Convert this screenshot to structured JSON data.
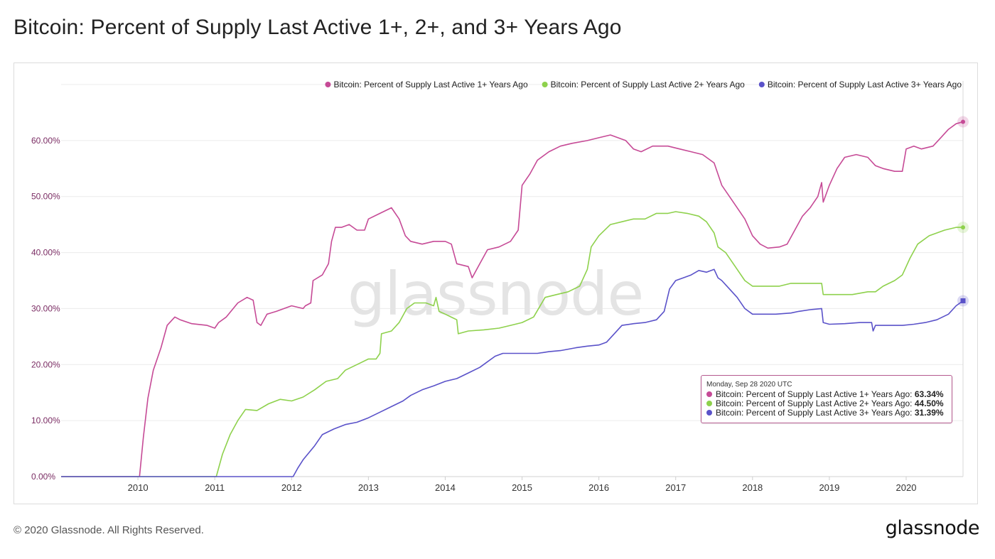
{
  "title": "Bitcoin: Percent of Supply Last Active 1+, 2+, and 3+ Years Ago",
  "footer": {
    "copyright": "© 2020 Glassnode. All Rights Reserved.",
    "logo": "glassnode"
  },
  "watermark": "glassnode",
  "tooltip": {
    "date": "Monday, Sep 28 2020 UTC",
    "rows": [
      {
        "label": "Bitcoin: Percent of Supply Last Active 1+ Years Ago:",
        "value": "63.34%",
        "color": "#c64a96"
      },
      {
        "label": "Bitcoin: Percent of Supply Last Active 2+ Years Ago:",
        "value": "44.50%",
        "color": "#8ed14c"
      },
      {
        "label": "Bitcoin: Percent of Supply Last Active 3+ Years Ago:",
        "value": "31.39%",
        "color": "#5a52c9"
      }
    ]
  },
  "chart_data": {
    "type": "line",
    "title": "Bitcoin: Percent of Supply Last Active 1+, 2+, and 3+ Years Ago",
    "xlim": [
      2009.0,
      2020.74
    ],
    "ylim": [
      0,
      70
    ],
    "x_ticks": [
      2010,
      2011,
      2012,
      2013,
      2014,
      2015,
      2016,
      2017,
      2018,
      2019,
      2020
    ],
    "x_tick_labels": [
      "2010",
      "2011",
      "2012",
      "2013",
      "2014",
      "2015",
      "2016",
      "2017",
      "2018",
      "2019",
      "2020"
    ],
    "y_ticks": [
      0,
      10,
      20,
      30,
      40,
      50,
      60
    ],
    "y_tick_labels": [
      "0.00%",
      "10.00%",
      "20.00%",
      "30.00%",
      "40.00%",
      "50.00%",
      "60.00%"
    ],
    "grid": "horizontal",
    "legend_position": "top-right",
    "series": [
      {
        "name": "Bitcoin: Percent of Supply Last Active 1+ Years Ago",
        "color": "#c64a96",
        "points": [
          [
            2009.0,
            0
          ],
          [
            2010.02,
            0
          ],
          [
            2010.07,
            7
          ],
          [
            2010.13,
            14
          ],
          [
            2010.2,
            19
          ],
          [
            2010.3,
            23
          ],
          [
            2010.38,
            27
          ],
          [
            2010.48,
            28.5
          ],
          [
            2010.55,
            28
          ],
          [
            2010.7,
            27.3
          ],
          [
            2010.9,
            27
          ],
          [
            2011.0,
            26.5
          ],
          [
            2011.05,
            27.5
          ],
          [
            2011.15,
            28.5
          ],
          [
            2011.3,
            31
          ],
          [
            2011.42,
            32
          ],
          [
            2011.5,
            31.5
          ],
          [
            2011.55,
            27.5
          ],
          [
            2011.6,
            27
          ],
          [
            2011.68,
            29
          ],
          [
            2011.8,
            29.5
          ],
          [
            2012.0,
            30.5
          ],
          [
            2012.15,
            30
          ],
          [
            2012.18,
            30.5
          ],
          [
            2012.25,
            31
          ],
          [
            2012.28,
            35
          ],
          [
            2012.4,
            36
          ],
          [
            2012.48,
            38
          ],
          [
            2012.52,
            42
          ],
          [
            2012.57,
            44.5
          ],
          [
            2012.65,
            44.5
          ],
          [
            2012.75,
            45
          ],
          [
            2012.85,
            44
          ],
          [
            2012.95,
            44
          ],
          [
            2013.0,
            46
          ],
          [
            2013.15,
            47
          ],
          [
            2013.3,
            48
          ],
          [
            2013.4,
            46
          ],
          [
            2013.48,
            43
          ],
          [
            2013.55,
            42
          ],
          [
            2013.7,
            41.5
          ],
          [
            2013.85,
            42
          ],
          [
            2014.0,
            42
          ],
          [
            2014.08,
            41.5
          ],
          [
            2014.15,
            38
          ],
          [
            2014.3,
            37.5
          ],
          [
            2014.35,
            35.5
          ],
          [
            2014.45,
            38
          ],
          [
            2014.55,
            40.5
          ],
          [
            2014.7,
            41
          ],
          [
            2014.85,
            42
          ],
          [
            2014.95,
            44
          ],
          [
            2015.0,
            52
          ],
          [
            2015.1,
            54
          ],
          [
            2015.2,
            56.5
          ],
          [
            2015.35,
            58
          ],
          [
            2015.5,
            59
          ],
          [
            2015.65,
            59.5
          ],
          [
            2015.85,
            60
          ],
          [
            2016.0,
            60.5
          ],
          [
            2016.15,
            61
          ],
          [
            2016.35,
            60
          ],
          [
            2016.45,
            58.5
          ],
          [
            2016.55,
            58
          ],
          [
            2016.7,
            59
          ],
          [
            2016.9,
            59
          ],
          [
            2017.05,
            58.5
          ],
          [
            2017.2,
            58
          ],
          [
            2017.35,
            57.5
          ],
          [
            2017.5,
            56
          ],
          [
            2017.6,
            52
          ],
          [
            2017.75,
            49
          ],
          [
            2017.9,
            46
          ],
          [
            2018.0,
            43
          ],
          [
            2018.1,
            41.5
          ],
          [
            2018.2,
            40.8
          ],
          [
            2018.35,
            41
          ],
          [
            2018.45,
            41.5
          ],
          [
            2018.55,
            44
          ],
          [
            2018.65,
            46.5
          ],
          [
            2018.75,
            48
          ],
          [
            2018.85,
            50
          ],
          [
            2018.9,
            52.5
          ],
          [
            2018.92,
            49
          ],
          [
            2019.0,
            52
          ],
          [
            2019.1,
            55
          ],
          [
            2019.2,
            57
          ],
          [
            2019.35,
            57.5
          ],
          [
            2019.5,
            57
          ],
          [
            2019.6,
            55.5
          ],
          [
            2019.7,
            55
          ],
          [
            2019.85,
            54.5
          ],
          [
            2019.95,
            54.5
          ],
          [
            2020.0,
            58.5
          ],
          [
            2020.1,
            59
          ],
          [
            2020.2,
            58.5
          ],
          [
            2020.35,
            59
          ],
          [
            2020.45,
            60.5
          ],
          [
            2020.55,
            62
          ],
          [
            2020.65,
            63
          ],
          [
            2020.74,
            63.34
          ]
        ]
      },
      {
        "name": "Bitcoin: Percent of Supply Last Active 2+ Years Ago",
        "color": "#8ed14c",
        "points": [
          [
            2009.0,
            0
          ],
          [
            2011.02,
            0
          ],
          [
            2011.1,
            4
          ],
          [
            2011.2,
            7.5
          ],
          [
            2011.3,
            10
          ],
          [
            2011.4,
            12
          ],
          [
            2011.55,
            11.8
          ],
          [
            2011.7,
            13
          ],
          [
            2011.85,
            13.8
          ],
          [
            2012.0,
            13.5
          ],
          [
            2012.15,
            14.2
          ],
          [
            2012.3,
            15.5
          ],
          [
            2012.45,
            17
          ],
          [
            2012.6,
            17.5
          ],
          [
            2012.7,
            19
          ],
          [
            2012.85,
            20
          ],
          [
            2013.0,
            21
          ],
          [
            2013.1,
            21
          ],
          [
            2013.15,
            22
          ],
          [
            2013.17,
            25.5
          ],
          [
            2013.3,
            26
          ],
          [
            2013.4,
            27.5
          ],
          [
            2013.5,
            30
          ],
          [
            2013.6,
            31
          ],
          [
            2013.75,
            31
          ],
          [
            2013.85,
            30.5
          ],
          [
            2013.88,
            32
          ],
          [
            2013.92,
            29.5
          ],
          [
            2014.0,
            29
          ],
          [
            2014.15,
            28
          ],
          [
            2014.17,
            25.5
          ],
          [
            2014.3,
            26
          ],
          [
            2014.5,
            26.2
          ],
          [
            2014.7,
            26.5
          ],
          [
            2014.85,
            27
          ],
          [
            2015.0,
            27.5
          ],
          [
            2015.15,
            28.5
          ],
          [
            2015.3,
            32
          ],
          [
            2015.45,
            32.5
          ],
          [
            2015.6,
            33
          ],
          [
            2015.75,
            34
          ],
          [
            2015.85,
            37
          ],
          [
            2015.9,
            41
          ],
          [
            2016.0,
            43
          ],
          [
            2016.15,
            45
          ],
          [
            2016.3,
            45.5
          ],
          [
            2016.45,
            46
          ],
          [
            2016.6,
            46
          ],
          [
            2016.75,
            47
          ],
          [
            2016.9,
            47
          ],
          [
            2017.0,
            47.3
          ],
          [
            2017.15,
            47
          ],
          [
            2017.3,
            46.5
          ],
          [
            2017.4,
            45.5
          ],
          [
            2017.5,
            43.5
          ],
          [
            2017.55,
            41
          ],
          [
            2017.65,
            40
          ],
          [
            2017.8,
            37
          ],
          [
            2017.9,
            35
          ],
          [
            2018.0,
            34
          ],
          [
            2018.15,
            34
          ],
          [
            2018.35,
            34
          ],
          [
            2018.5,
            34.5
          ],
          [
            2018.65,
            34.5
          ],
          [
            2018.8,
            34.5
          ],
          [
            2018.9,
            34.5
          ],
          [
            2018.92,
            32.5
          ],
          [
            2019.0,
            32.5
          ],
          [
            2019.15,
            32.5
          ],
          [
            2019.3,
            32.5
          ],
          [
            2019.5,
            33
          ],
          [
            2019.6,
            33
          ],
          [
            2019.7,
            34
          ],
          [
            2019.85,
            35
          ],
          [
            2019.95,
            36
          ],
          [
            2020.0,
            37.5
          ],
          [
            2020.05,
            39
          ],
          [
            2020.15,
            41.5
          ],
          [
            2020.3,
            43
          ],
          [
            2020.5,
            44
          ],
          [
            2020.65,
            44.5
          ],
          [
            2020.74,
            44.5
          ]
        ]
      },
      {
        "name": "Bitcoin: Percent of Supply Last Active 3+ Years Ago",
        "color": "#5a52c9",
        "points": [
          [
            2009.0,
            0
          ],
          [
            2012.02,
            0
          ],
          [
            2012.08,
            1.5
          ],
          [
            2012.15,
            3
          ],
          [
            2012.3,
            5.5
          ],
          [
            2012.4,
            7.5
          ],
          [
            2012.55,
            8.5
          ],
          [
            2012.7,
            9.3
          ],
          [
            2012.85,
            9.7
          ],
          [
            2013.0,
            10.5
          ],
          [
            2013.15,
            11.5
          ],
          [
            2013.3,
            12.5
          ],
          [
            2013.45,
            13.5
          ],
          [
            2013.55,
            14.5
          ],
          [
            2013.7,
            15.5
          ],
          [
            2013.85,
            16.2
          ],
          [
            2014.0,
            17
          ],
          [
            2014.15,
            17.5
          ],
          [
            2014.3,
            18.5
          ],
          [
            2014.45,
            19.5
          ],
          [
            2014.55,
            20.5
          ],
          [
            2014.65,
            21.5
          ],
          [
            2014.75,
            22
          ],
          [
            2014.9,
            22
          ],
          [
            2015.0,
            22
          ],
          [
            2015.2,
            22
          ],
          [
            2015.35,
            22.3
          ],
          [
            2015.5,
            22.5
          ],
          [
            2015.7,
            23
          ],
          [
            2015.85,
            23.3
          ],
          [
            2016.0,
            23.5
          ],
          [
            2016.1,
            24
          ],
          [
            2016.2,
            25.5
          ],
          [
            2016.3,
            27
          ],
          [
            2016.45,
            27.3
          ],
          [
            2016.6,
            27.5
          ],
          [
            2016.75,
            28
          ],
          [
            2016.85,
            29.5
          ],
          [
            2016.92,
            33.5
          ],
          [
            2017.0,
            35
          ],
          [
            2017.1,
            35.5
          ],
          [
            2017.2,
            36
          ],
          [
            2017.3,
            36.8
          ],
          [
            2017.4,
            36.5
          ],
          [
            2017.5,
            37
          ],
          [
            2017.55,
            35.5
          ],
          [
            2017.6,
            35
          ],
          [
            2017.7,
            33.5
          ],
          [
            2017.8,
            32
          ],
          [
            2017.9,
            30
          ],
          [
            2018.0,
            29
          ],
          [
            2018.15,
            29
          ],
          [
            2018.3,
            29
          ],
          [
            2018.5,
            29.2
          ],
          [
            2018.6,
            29.5
          ],
          [
            2018.75,
            29.8
          ],
          [
            2018.9,
            30
          ],
          [
            2018.92,
            27.5
          ],
          [
            2019.0,
            27.2
          ],
          [
            2019.2,
            27.3
          ],
          [
            2019.4,
            27.5
          ],
          [
            2019.55,
            27.5
          ],
          [
            2019.57,
            26
          ],
          [
            2019.6,
            27
          ],
          [
            2019.75,
            27
          ],
          [
            2019.95,
            27
          ],
          [
            2020.1,
            27.2
          ],
          [
            2020.25,
            27.5
          ],
          [
            2020.4,
            28
          ],
          [
            2020.55,
            29
          ],
          [
            2020.65,
            30.5
          ],
          [
            2020.74,
            31.39
          ]
        ]
      }
    ]
  }
}
